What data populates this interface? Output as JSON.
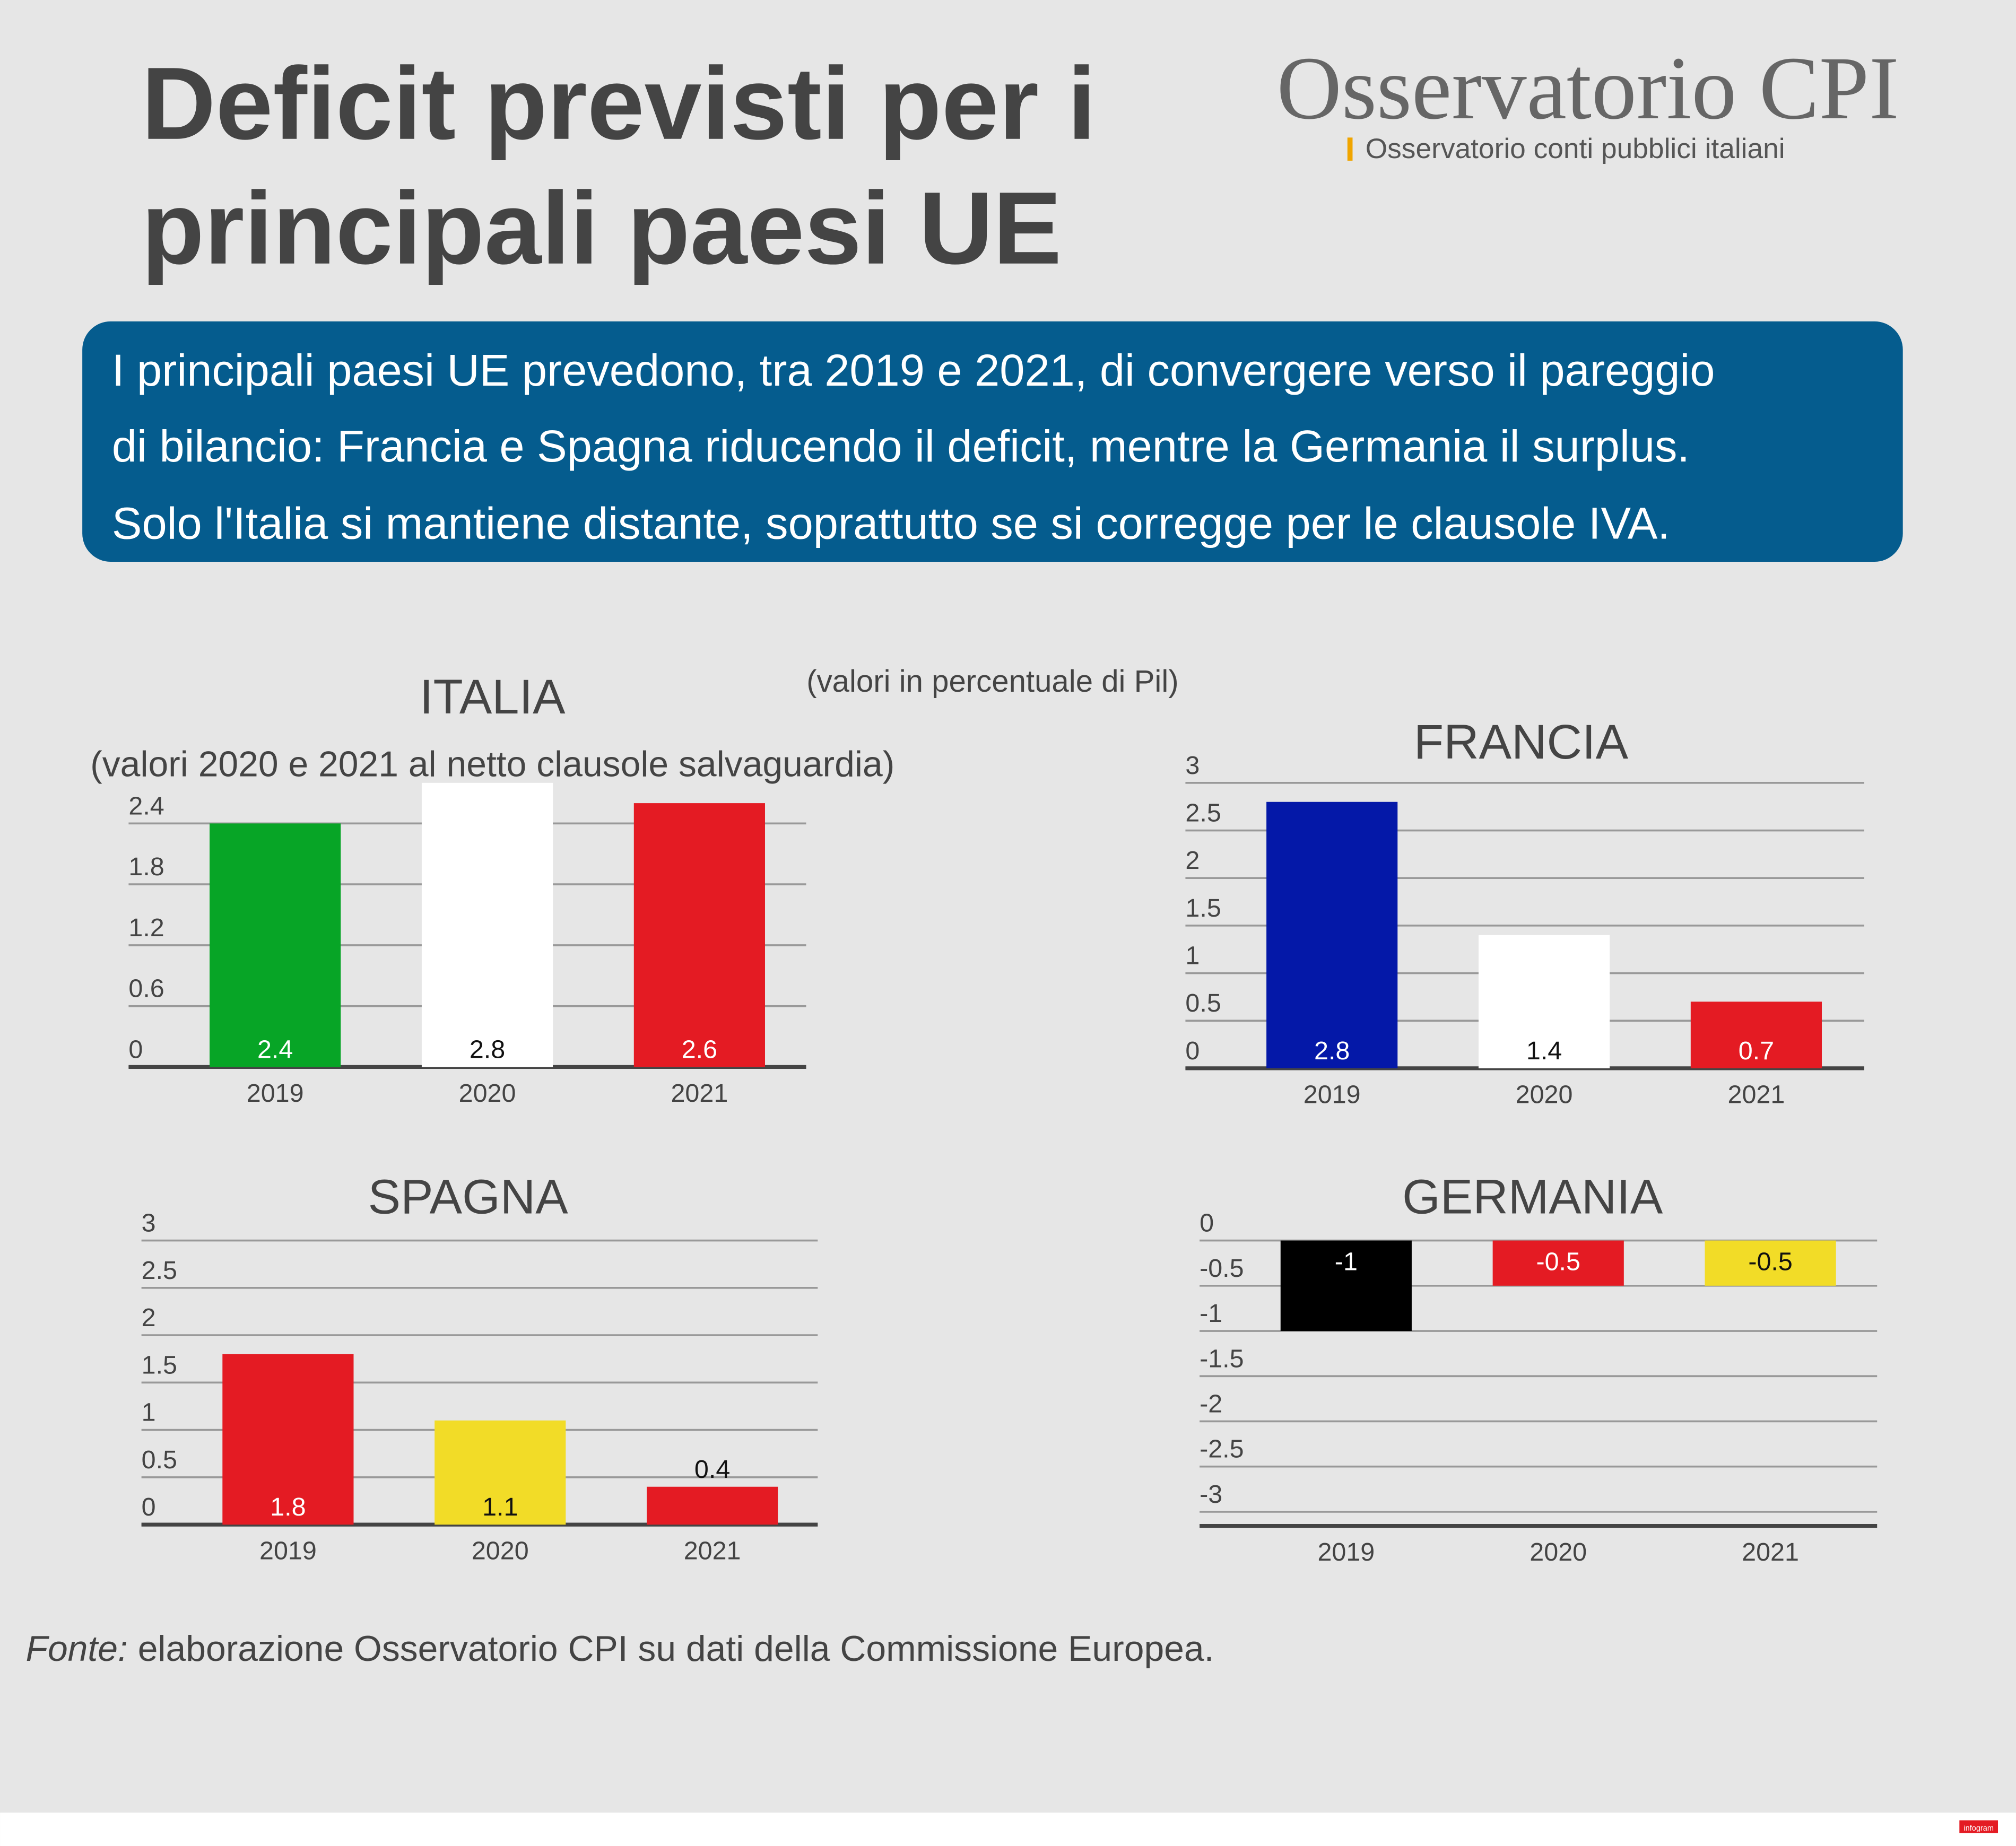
{
  "header": {
    "title_lines": [
      "Deficit previsti per i",
      "principali paesi UE"
    ],
    "logo": "Osservatorio CPI",
    "logo_tagline": "Osservatorio conti pubblici italiani"
  },
  "summary": [
    "I principali paesi UE prevedono, tra 2019 e 2021, di convergere verso il pareggio",
    "di bilancio: Francia e Spagna riducendo il deficit, mentre la Germania il surplus.",
    "Solo l'Italia si mantiene distante, soprattutto se si corregge per le clausole IVA."
  ],
  "note": "(valori in percentuale di Pil)",
  "source": {
    "label": "Fonte:",
    "text": " elaborazione Osservatorio CPI su dati della Commissione Europea."
  },
  "badge": "infogram",
  "chart_data": [
    {
      "type": "bar",
      "title": "ITALIA",
      "subtitle": "(valori 2020 e 2021 al netto clausole salvaguardia)",
      "categories": [
        "2019",
        "2020",
        "2021"
      ],
      "values": [
        2.4,
        2.8,
        2.6
      ],
      "colors": [
        "#07a526",
        "#ffffff",
        "#e41b23"
      ],
      "ylim": [
        0,
        2.8
      ],
      "yticks": [
        0,
        0.6,
        1.2,
        1.8,
        2.4
      ],
      "grid": true
    },
    {
      "type": "bar",
      "title": "FRANCIA",
      "categories": [
        "2019",
        "2020",
        "2021"
      ],
      "values": [
        2.8,
        1.4,
        0.7
      ],
      "colors": [
        "#0418a8",
        "#ffffff",
        "#e41b23"
      ],
      "ylim": [
        0,
        3
      ],
      "yticks": [
        0,
        0.5,
        1,
        1.5,
        2,
        2.5,
        3
      ],
      "grid": true
    },
    {
      "type": "bar",
      "title": "SPAGNA",
      "categories": [
        "2019",
        "2020",
        "2021"
      ],
      "values": [
        1.8,
        1.1,
        0.4
      ],
      "colors": [
        "#e41b23",
        "#f2dc27",
        "#e41b23"
      ],
      "ylim": [
        0,
        3
      ],
      "yticks": [
        0,
        0.5,
        1,
        1.5,
        2,
        2.5,
        3
      ],
      "grid": true
    },
    {
      "type": "bar",
      "title": "GERMANIA",
      "categories": [
        "2019",
        "2020",
        "2021"
      ],
      "values": [
        -1,
        -0.5,
        -0.5
      ],
      "colors": [
        "#000000",
        "#e41b23",
        "#f2dc27"
      ],
      "ylim": [
        -3,
        0
      ],
      "yticks": [
        0,
        -0.5,
        -1,
        -1.5,
        -2,
        -2.5,
        -3
      ],
      "grid": true
    }
  ]
}
